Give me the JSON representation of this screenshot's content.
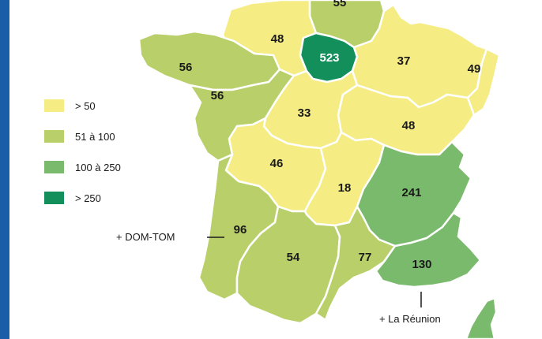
{
  "colors": {
    "frame": "#1b5ea8",
    "class_lt50": "#f5ec84",
    "class_51_100": "#b9cf6a",
    "class_100_250": "#79ba6c",
    "class_gt250": "#138f5c",
    "border": "#ffffff"
  },
  "legend": [
    {
      "label": "> 50",
      "color": "#f5ec84"
    },
    {
      "label": "51 à 100",
      "color": "#b9cf6a"
    },
    {
      "label": "100 à 250",
      "color": "#79ba6c"
    },
    {
      "label": "> 250",
      "color": "#138f5c"
    }
  ],
  "regions": [
    {
      "id": "nord",
      "value": "55",
      "cls": "class_51_100"
    },
    {
      "id": "haute-normandie",
      "value": "48",
      "cls": "class_lt50"
    },
    {
      "id": "ile-de-france",
      "value": "523",
      "cls": "class_gt250"
    },
    {
      "id": "champagne",
      "value": "37",
      "cls": "class_lt50"
    },
    {
      "id": "alsace",
      "value": "49",
      "cls": "class_lt50"
    },
    {
      "id": "bretagne",
      "value": "56",
      "cls": "class_51_100"
    },
    {
      "id": "pays-de-la-loire",
      "value": "56",
      "cls": "class_51_100"
    },
    {
      "id": "centre",
      "value": "33",
      "cls": "class_lt50"
    },
    {
      "id": "bourgogne-franche-comte",
      "value": "48",
      "cls": "class_lt50"
    },
    {
      "id": "poitou-limousin",
      "value": "46",
      "cls": "class_lt50"
    },
    {
      "id": "auvergne",
      "value": "18",
      "cls": "class_lt50"
    },
    {
      "id": "rhone-alpes",
      "value": "241",
      "cls": "class_100_250"
    },
    {
      "id": "aquitaine",
      "value": "96",
      "cls": "class_51_100"
    },
    {
      "id": "midi-pyrenees",
      "value": "54",
      "cls": "class_51_100"
    },
    {
      "id": "languedoc",
      "value": "77",
      "cls": "class_51_100"
    },
    {
      "id": "paca",
      "value": "130",
      "cls": "class_100_250"
    },
    {
      "id": "corse",
      "value": "",
      "cls": "class_100_250"
    }
  ],
  "callouts": {
    "dom_tom": "+ DOM-TOM",
    "reunion": "+ La Réunion"
  }
}
